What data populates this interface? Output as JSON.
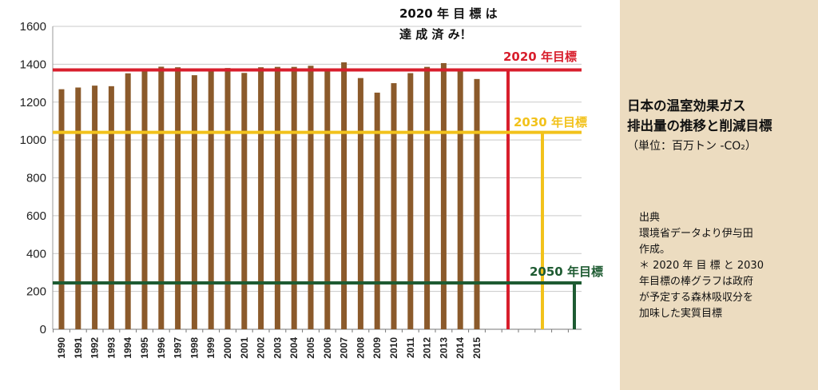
{
  "chart_data": {
    "type": "bar",
    "categories": [
      "1990",
      "1991",
      "1992",
      "1993",
      "1994",
      "1995",
      "1996",
      "1997",
      "1998",
      "1999",
      "2000",
      "2001",
      "2002",
      "2003",
      "2004",
      "2005",
      "2006",
      "2007",
      "2008",
      "2009",
      "2010",
      "2011",
      "2012",
      "2013",
      "2014",
      "2015"
    ],
    "values": [
      1268,
      1277,
      1287,
      1284,
      1352,
      1363,
      1387,
      1384,
      1342,
      1370,
      1380,
      1354,
      1384,
      1386,
      1386,
      1392,
      1367,
      1410,
      1327,
      1250,
      1300,
      1353,
      1386,
      1406,
      1366,
      1322
    ],
    "target_bars": [
      {
        "id": "t2020",
        "value": 1370,
        "color": "#d81e2c"
      },
      {
        "id": "t2030",
        "value": 1040,
        "color": "#f2c21b"
      },
      {
        "id": "t2050",
        "value": 245,
        "color": "#1e5b32"
      }
    ],
    "ylim": [
      0,
      1600
    ],
    "yticks": [
      0,
      200,
      400,
      600,
      800,
      1000,
      1200,
      1400,
      1600
    ],
    "bar_color": "#8b5a2b",
    "grid": true
  },
  "annotation": [
    "2020 年 目 標 は",
    "達 成 済 み！"
  ],
  "target_labels": {
    "t2020": "2020 年目標",
    "t2030": "2030 年目標",
    "t2050": "2050 年目標"
  },
  "side": {
    "title_line1": "日本の温室効果ガス",
    "title_line2": "排出量の推移と削減目標",
    "unit": "（単位：百万トン -CO₂）",
    "source_lines": [
      "出典",
      "環境省データより伊与田",
      "作成。",
      "＊ 2020 年 目 標 と 2030",
      "年目標の棒グラフは政府",
      "が予定する森林吸収分を",
      "加味した実質目標"
    ],
    "background": "#ecdcc0"
  }
}
